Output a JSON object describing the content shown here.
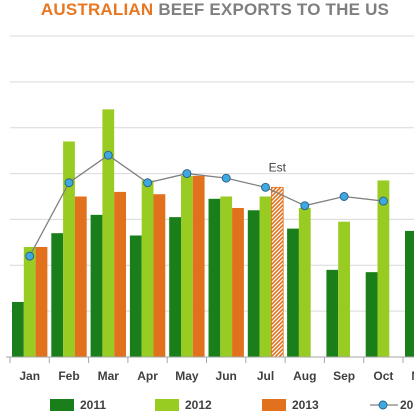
{
  "title": {
    "part1": "AUSTRALIAN",
    "part2": "BEEF EXPORTS TO THE US"
  },
  "colors": {
    "s2011": "#1a7f1a",
    "s2012": "#99cc22",
    "s2013": "#e2711d",
    "line": "#808080",
    "marker": "#3ea8e0",
    "grid": "#d9d9d9",
    "title_accent": "#e87722",
    "title_rest": "#7f7f7f"
  },
  "chart_data": {
    "type": "bar",
    "categories": [
      "Jan",
      "Feb",
      "Mar",
      "Apr",
      "May",
      "Jun",
      "Jul",
      "Aug",
      "Sep",
      "Oct",
      "Nov"
    ],
    "ylim": [
      0,
      7
    ],
    "grid": true,
    "legend_position": "bottom",
    "series": [
      {
        "name": "2011",
        "kind": "bar",
        "values": [
          1.2,
          2.7,
          3.1,
          2.65,
          3.05,
          3.45,
          3.2,
          2.8,
          1.9,
          1.85,
          2.75
        ]
      },
      {
        "name": "2012",
        "kind": "bar",
        "values": [
          2.4,
          4.7,
          5.4,
          3.85,
          3.95,
          3.5,
          3.5,
          3.25,
          2.95,
          3.85,
          null
        ]
      },
      {
        "name": "2013",
        "kind": "bar",
        "values": [
          2.4,
          3.5,
          3.6,
          3.55,
          3.95,
          3.25,
          3.7,
          null,
          null,
          null,
          null
        ]
      },
      {
        "name": "20",
        "kind": "line",
        "values": [
          2.2,
          3.8,
          4.4,
          3.8,
          4.0,
          3.9,
          3.7,
          3.3,
          3.5,
          3.4,
          null
        ]
      }
    ],
    "estimate_label": "Est",
    "estimate_category": "Jul"
  }
}
